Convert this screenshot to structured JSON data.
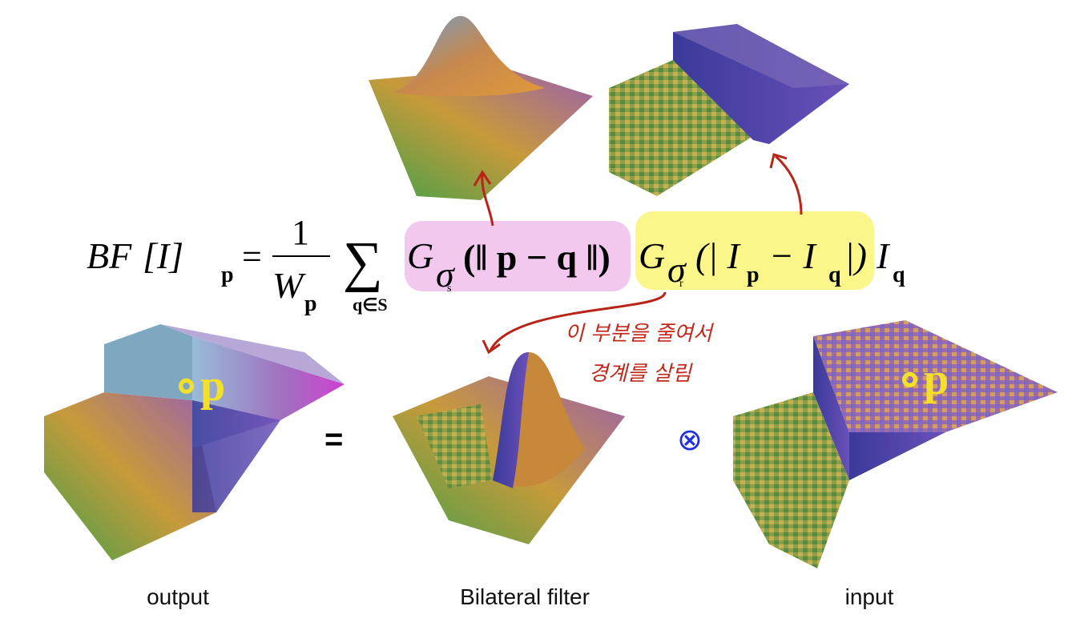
{
  "formula": {
    "lhs": "BF",
    "bracket": "[I]",
    "lhs_sub": "p",
    "equals": "=",
    "numerator": "1",
    "denominator": "W",
    "denominator_sub": "p",
    "sum": "∑",
    "sum_sub": "q∈S",
    "spatial_kernel": "G",
    "spatial_sigma": "σ",
    "spatial_sigma_sub": "s",
    "spatial_arg": "(‖ p − q ‖)",
    "range_kernel": "G",
    "range_sigma": "σ",
    "range_sigma_sub": "r",
    "range_arg_open": "(| I",
    "range_arg_p": "p",
    "range_arg_minus": "− I",
    "range_arg_q": "q",
    "range_arg_close": "|)",
    "intensity": "I",
    "intensity_sub": "q"
  },
  "equation_sign": "=",
  "operator": "⊗",
  "point_labels": [
    "∘p",
    "∘p"
  ],
  "annotation": [
    "이 부분을 줄여서",
    "경계를 살림"
  ],
  "captions": [
    "output",
    "Bilateral filter",
    "input"
  ]
}
